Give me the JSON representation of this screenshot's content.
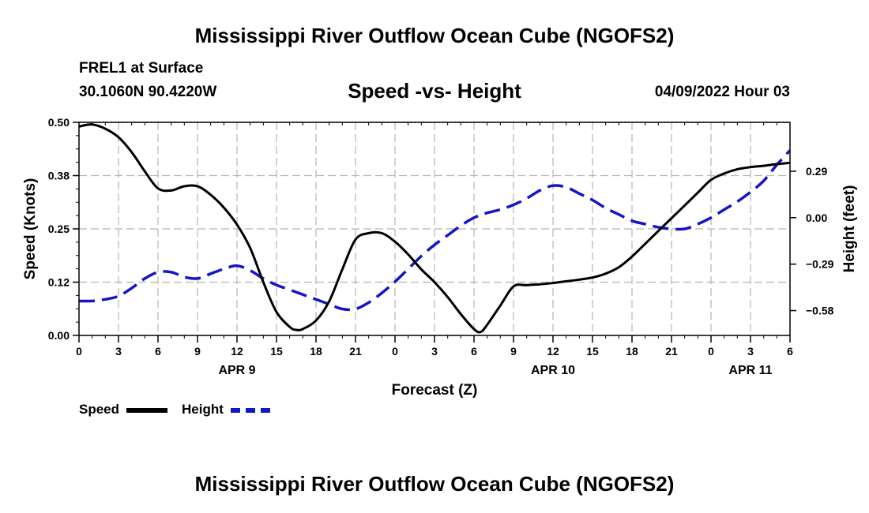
{
  "header": {
    "title": "Mississippi River Outflow Ocean Cube (NGOFS2)",
    "station": "FREL1 at Surface",
    "coordinates": "30.1060N  90.4220W",
    "subtitle": "Speed -vs- Height",
    "timestamp": "04/09/2022 Hour 03"
  },
  "footer": {
    "title": "Mississippi River Outflow Ocean Cube (NGOFS2)"
  },
  "legend": {
    "speed_label": "Speed",
    "height_label": "Height"
  },
  "colors": {
    "speed": "#000000",
    "height": "#1515c8",
    "grid": "#b4b4b4"
  },
  "chart_data": {
    "type": "line",
    "title": "Speed -vs- Height",
    "xlabel": "Forecast (Z)",
    "ylabel_left": "Speed (Knots)",
    "ylabel_right": "Height (feet)",
    "x_range": [
      0,
      54
    ],
    "x_ticks": [
      {
        "hour": 0,
        "label": "0"
      },
      {
        "hour": 3,
        "label": "3"
      },
      {
        "hour": 6,
        "label": "6"
      },
      {
        "hour": 9,
        "label": "9"
      },
      {
        "hour": 12,
        "label": "12"
      },
      {
        "hour": 15,
        "label": "15"
      },
      {
        "hour": 18,
        "label": "18"
      },
      {
        "hour": 21,
        "label": "21"
      },
      {
        "hour": 24,
        "label": "0"
      },
      {
        "hour": 27,
        "label": "3"
      },
      {
        "hour": 30,
        "label": "6"
      },
      {
        "hour": 33,
        "label": "9"
      },
      {
        "hour": 36,
        "label": "12"
      },
      {
        "hour": 39,
        "label": "15"
      },
      {
        "hour": 42,
        "label": "18"
      },
      {
        "hour": 45,
        "label": "21"
      },
      {
        "hour": 48,
        "label": "0"
      },
      {
        "hour": 51,
        "label": "3"
      },
      {
        "hour": 54,
        "label": "6"
      }
    ],
    "day_labels": [
      {
        "hour": 12,
        "label": "APR 9"
      },
      {
        "hour": 36,
        "label": "APR 10"
      },
      {
        "hour": 51,
        "label": "APR 11"
      }
    ],
    "y_left": {
      "range": [
        0,
        0.5
      ],
      "ticks": [
        {
          "value": 0,
          "label": "0.00"
        },
        {
          "value": 0.125,
          "label": "0.12"
        },
        {
          "value": 0.25,
          "label": "0.25"
        },
        {
          "value": 0.375,
          "label": "0.38"
        },
        {
          "value": 0.5,
          "label": "0.50"
        }
      ]
    },
    "y_right": {
      "range": [
        -0.735,
        0.595
      ],
      "ticks": [
        {
          "value": -0.58,
          "label": "−0.58"
        },
        {
          "value": -0.29,
          "label": "−0.29"
        },
        {
          "value": 0.0,
          "label": "0.00"
        },
        {
          "value": 0.29,
          "label": "0.29"
        }
      ]
    },
    "series": [
      {
        "name": "Speed",
        "axis": "left",
        "style": "solid",
        "x": [
          0,
          1,
          2,
          3,
          4,
          5,
          6,
          7,
          8,
          9,
          10,
          11,
          12,
          13,
          14,
          15,
          16,
          16.5,
          17,
          18,
          19,
          20,
          21,
          22,
          23,
          24,
          25,
          26,
          27,
          28,
          29,
          30,
          30.5,
          31,
          32,
          33,
          34,
          35,
          36,
          37,
          38,
          39,
          40,
          41,
          42,
          43,
          44,
          45,
          46,
          47,
          48,
          49,
          50,
          51,
          52,
          53,
          54
        ],
        "values": [
          0.49,
          0.495,
          0.485,
          0.465,
          0.43,
          0.385,
          0.345,
          0.34,
          0.35,
          0.35,
          0.33,
          0.3,
          0.26,
          0.205,
          0.125,
          0.055,
          0.02,
          0.013,
          0.015,
          0.035,
          0.08,
          0.155,
          0.225,
          0.24,
          0.24,
          0.22,
          0.19,
          0.155,
          0.125,
          0.09,
          0.05,
          0.015,
          0.008,
          0.025,
          0.07,
          0.115,
          0.118,
          0.12,
          0.123,
          0.127,
          0.131,
          0.136,
          0.145,
          0.16,
          0.185,
          0.215,
          0.245,
          0.275,
          0.305,
          0.335,
          0.365,
          0.38,
          0.39,
          0.395,
          0.398,
          0.402,
          0.405
        ]
      },
      {
        "name": "Height",
        "axis": "right",
        "style": "dashed",
        "x": [
          0,
          1,
          2,
          3,
          4,
          5,
          6,
          7,
          8,
          9,
          10,
          11,
          12,
          13,
          14,
          15,
          16,
          17,
          18,
          19,
          20,
          21,
          22,
          23,
          24,
          25,
          26,
          27,
          28,
          29,
          30,
          31,
          32,
          33,
          34,
          35,
          36,
          37,
          38,
          39,
          40,
          41,
          42,
          43,
          44,
          45,
          46,
          47,
          48,
          49,
          50,
          51,
          52,
          53,
          54
        ],
        "values": [
          -0.52,
          -0.52,
          -0.51,
          -0.49,
          -0.44,
          -0.38,
          -0.34,
          -0.34,
          -0.37,
          -0.38,
          -0.35,
          -0.32,
          -0.3,
          -0.33,
          -0.38,
          -0.42,
          -0.45,
          -0.48,
          -0.51,
          -0.54,
          -0.57,
          -0.57,
          -0.53,
          -0.47,
          -0.4,
          -0.32,
          -0.24,
          -0.17,
          -0.11,
          -0.05,
          0.0,
          0.03,
          0.05,
          0.08,
          0.12,
          0.17,
          0.2,
          0.19,
          0.15,
          0.11,
          0.06,
          0.02,
          -0.02,
          -0.04,
          -0.06,
          -0.07,
          -0.07,
          -0.04,
          0.0,
          0.05,
          0.1,
          0.16,
          0.23,
          0.33,
          0.42
        ]
      }
    ]
  }
}
